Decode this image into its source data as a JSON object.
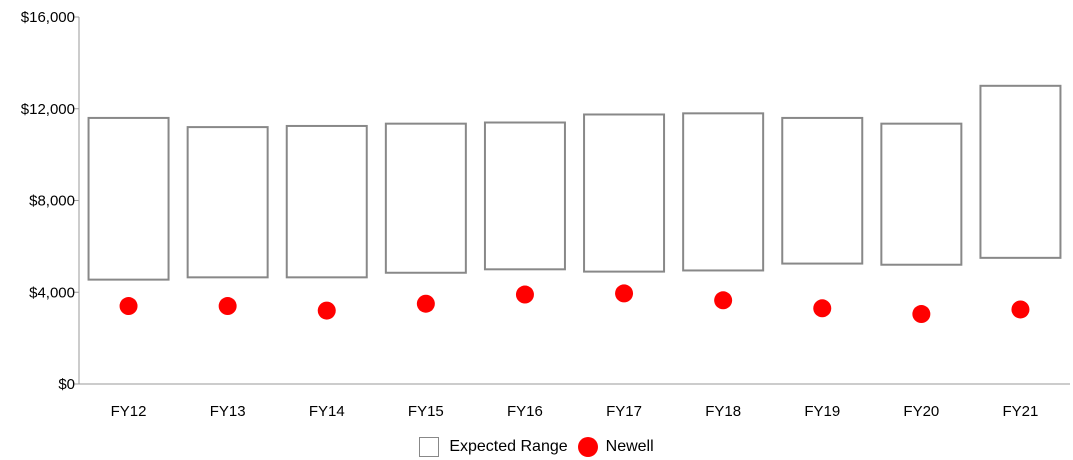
{
  "chart_data": {
    "type": "range-bar-with-points",
    "categories": [
      "FY12",
      "FY13",
      "FY14",
      "FY15",
      "FY16",
      "FY17",
      "FY18",
      "FY19",
      "FY20",
      "FY21"
    ],
    "series": [
      {
        "name": "Expected Range",
        "kind": "range",
        "low": [
          4550,
          4650,
          4650,
          4850,
          5000,
          4900,
          4950,
          5250,
          5200,
          5500
        ],
        "high": [
          11600,
          11200,
          11250,
          11350,
          11400,
          11750,
          11800,
          11600,
          11350,
          13000
        ]
      },
      {
        "name": "Newell",
        "kind": "point",
        "values": [
          3400,
          3400,
          3200,
          3500,
          3900,
          3950,
          3650,
          3300,
          3050,
          3250
        ]
      }
    ],
    "ylim": [
      0,
      16000
    ],
    "yticks": [
      0,
      4000,
      8000,
      12000,
      16000
    ],
    "ytick_labels": [
      "$0",
      "$4,000",
      "$8,000",
      "$12,000",
      "$16,000"
    ],
    "xlabel": "",
    "ylabel": "",
    "grid": false,
    "legend_position": "bottom-center",
    "colors": {
      "range_stroke": "#888888",
      "range_fill": "#ffffff",
      "point": "#ff0000",
      "axis": "#999999"
    }
  },
  "legend": {
    "expected_range": "Expected Range",
    "newell": "Newell"
  }
}
